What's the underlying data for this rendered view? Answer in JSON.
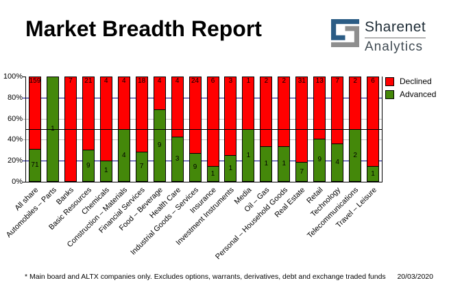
{
  "header": {
    "title": "Market Breadth Report",
    "logo": {
      "name": "Sharenet",
      "sub": "Analytics",
      "blue": "#2b5c85",
      "gray": "#8e8e8e"
    }
  },
  "chart_data": {
    "type": "bar",
    "stacked": true,
    "stack_mode": "percent",
    "categories": [
      "All share",
      "Automobiles – Parts",
      "Banks",
      "Basic Resources",
      "Chemicals",
      "Construction – Materials",
      "Financial Services",
      "Food – Beverage",
      "Health Care",
      "Industrial Goods – Services",
      "Insurance",
      "Investment Instruments",
      "Media",
      "Oil – Gas",
      "Personal – Household Goods",
      "Real Estate",
      "Retail",
      "Technology",
      "Telecommunications",
      "Travel – Leisure"
    ],
    "series": [
      {
        "name": "Declined",
        "color": "#ff0000",
        "values": [
          159,
          0,
          7,
          21,
          4,
          4,
          18,
          4,
          4,
          24,
          6,
          3,
          1,
          2,
          2,
          31,
          13,
          7,
          2,
          6
        ]
      },
      {
        "name": "Advanced",
        "color": "#44880a",
        "values": [
          71,
          1,
          0,
          9,
          1,
          4,
          7,
          9,
          3,
          9,
          1,
          1,
          1,
          1,
          1,
          7,
          9,
          4,
          2,
          1
        ]
      }
    ],
    "ylim": [
      0,
      100
    ],
    "y_ticks": [
      {
        "label": "100%",
        "pct": 100
      },
      {
        "label": "80%",
        "pct": 80
      },
      {
        "label": "60%",
        "pct": 60
      },
      {
        "label": "40%",
        "pct": 40
      },
      {
        "label": "20%",
        "pct": 20
      },
      {
        "label": "0%",
        "pct": 0
      }
    ],
    "gridlines": [
      {
        "pct": 80,
        "color": "#000080"
      },
      {
        "pct": 60,
        "color": "#c0c0c0"
      },
      {
        "pct": 40,
        "color": "#c0c0c0"
      },
      {
        "pct": 20,
        "color": "#000080"
      }
    ],
    "reference_line_pct": 50,
    "legend_position": "top-right",
    "grid": true
  },
  "footer": {
    "note": "* Main board and ALTX companies only. Excludes options, warrants, derivatives, debt and exchange traded funds",
    "date": "20/03/2020"
  }
}
